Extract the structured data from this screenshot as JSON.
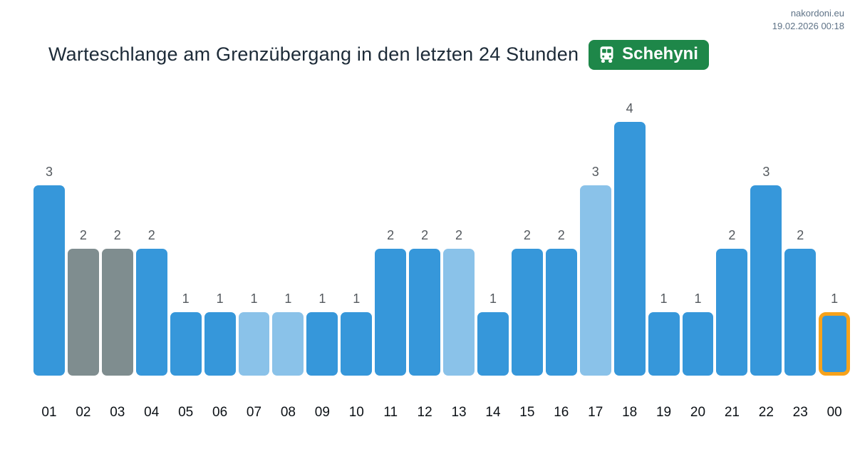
{
  "meta": {
    "site": "nakordoni.eu",
    "timestamp": "19.02.2026 00:18"
  },
  "header": {
    "title": "Warteschlange am Grenzübergang in den letzten 24 Stunden",
    "badge": {
      "label": "Schehyni",
      "icon": "bus-icon",
      "color": "#1e8749"
    }
  },
  "chart_data": {
    "type": "bar",
    "title": "Warteschlange am Grenzübergang in den letzten 24 Stunden",
    "xlabel": "",
    "ylabel": "",
    "ylim": [
      0,
      4
    ],
    "grid": false,
    "legend": false,
    "value_labels": true,
    "categories": [
      "01",
      "02",
      "03",
      "04",
      "05",
      "06",
      "07",
      "08",
      "09",
      "10",
      "11",
      "12",
      "13",
      "14",
      "15",
      "16",
      "17",
      "18",
      "19",
      "20",
      "21",
      "22",
      "23",
      "00"
    ],
    "values": [
      3,
      2,
      2,
      2,
      1,
      1,
      1,
      1,
      1,
      1,
      2,
      2,
      2,
      1,
      2,
      2,
      3,
      4,
      1,
      1,
      2,
      3,
      2,
      1
    ],
    "bar_styles": [
      "blue",
      "gray",
      "gray",
      "blue",
      "blue",
      "blue",
      "light_blue",
      "light_blue",
      "blue",
      "blue",
      "blue",
      "blue",
      "light_blue",
      "blue",
      "blue",
      "blue",
      "light_blue",
      "blue",
      "blue",
      "blue",
      "blue",
      "blue",
      "blue",
      "blue"
    ],
    "highlight_index": 23,
    "colors": {
      "blue": "#3697da",
      "light_blue": "#8ac2e9",
      "gray": "#7f8d8f",
      "highlight_border": "#f7a21b",
      "value_label": "#54595e",
      "axis_label": "#0c1116"
    }
  }
}
